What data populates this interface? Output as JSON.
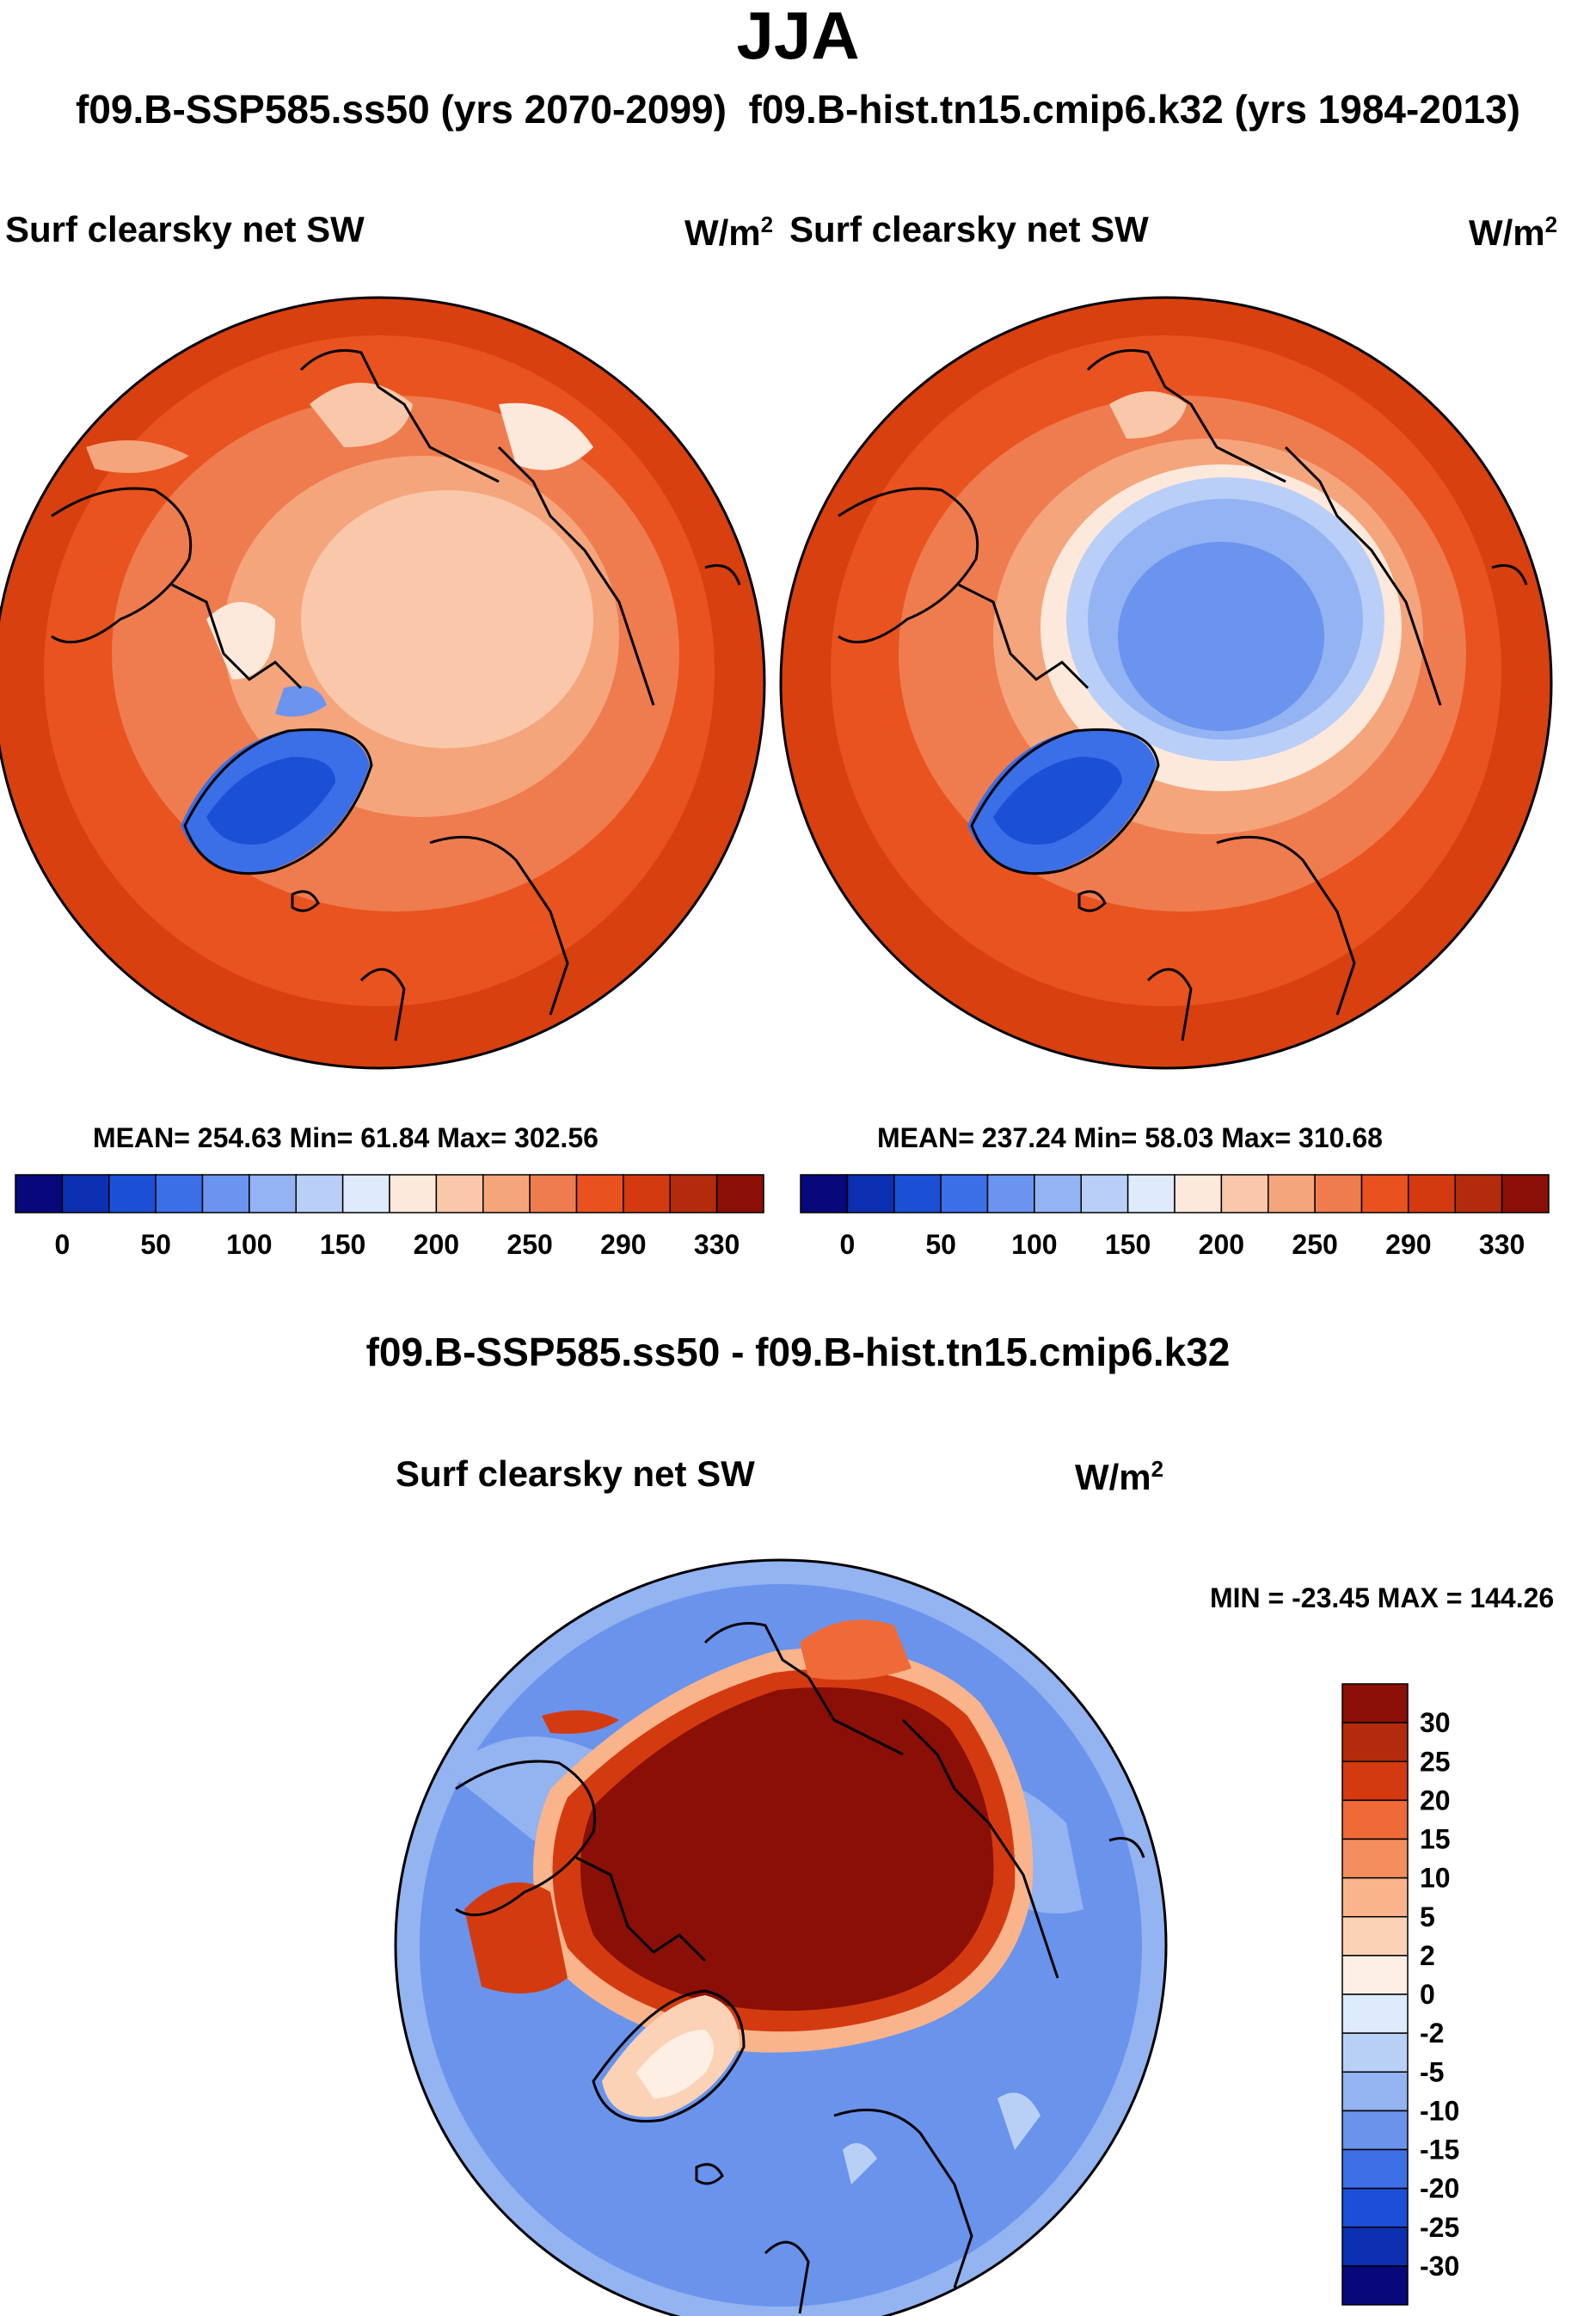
{
  "title": "JJA",
  "subtitle_left": "f09.B-SSP585.ss50 (yrs 2070-2099)",
  "subtitle_right": "f09.B-hist.tn15.cmip6.k32 (yrs 1984-2013)",
  "panel_left": {
    "variable": "Surf clearsky net SW",
    "units_base": "W/m",
    "units_exp": "2",
    "stats": "MEAN= 254.63  Min=  61.84  Max= 302.56"
  },
  "panel_right": {
    "variable": "Surf clearsky net SW",
    "units_base": "W/m",
    "units_exp": "2",
    "stats": "MEAN= 237.24  Min=  58.03  Max= 310.68"
  },
  "diff_panel": {
    "heading": "f09.B-SSP585.ss50 - f09.B-hist.tn15.cmip6.k32",
    "variable": "Surf clearsky net SW",
    "units_base": "W/m",
    "units_exp": "2",
    "minmax": "MIN = -23.45 MAX = 144.26"
  },
  "colors": {
    "abs_bins": [
      "#08087a",
      "#0b2fb0",
      "#1a4fd6",
      "#3a6fe8",
      "#6b94ee",
      "#93b3f2",
      "#b9cff7",
      "#dfeafc",
      "#fde9dc",
      "#f9c8aa",
      "#f5a57c",
      "#ef7c4e",
      "#e9511f",
      "#d43a10",
      "#b32a0c",
      "#8a0f06"
    ],
    "diff_bins": [
      "#8a0f06",
      "#b32a0c",
      "#d43a10",
      "#ef6a36",
      "#f58e5e",
      "#f9b48c",
      "#fbd2b6",
      "#fdefe4",
      "#ddebfc",
      "#b9d0f6",
      "#93b3f1",
      "#6a93ec",
      "#3e6fe6",
      "#1c4ed8",
      "#0b2fb0",
      "#08087a"
    ]
  },
  "chart_data": [
    {
      "type": "heatmap",
      "title": "Surf clearsky net SW",
      "period": "f09.B-SSP585.ss50 (yrs 2070-2099)",
      "colorbar_ticks": [
        "0",
        "50",
        "100",
        "150",
        "200",
        "250",
        "290",
        "330"
      ],
      "colorbar_levels": [
        0,
        25,
        50,
        75,
        100,
        125,
        150,
        175,
        200,
        225,
        250,
        270,
        290,
        310,
        330
      ],
      "mean": 254.63,
      "min": 61.84,
      "max": 302.56
    },
    {
      "type": "heatmap",
      "title": "Surf clearsky net SW",
      "period": "f09.B-hist.tn15.cmip6.k32 (yrs 1984-2013)",
      "colorbar_ticks": [
        "0",
        "50",
        "100",
        "150",
        "200",
        "250",
        "290",
        "330"
      ],
      "colorbar_levels": [
        0,
        25,
        50,
        75,
        100,
        125,
        150,
        175,
        200,
        225,
        250,
        270,
        290,
        310,
        330
      ],
      "mean": 237.24,
      "min": 58.03,
      "max": 310.68
    },
    {
      "type": "heatmap",
      "title": "Surf clearsky net SW",
      "difference": "f09.B-SSP585.ss50 - f09.B-hist.tn15.cmip6.k32",
      "colorbar_ticks": [
        "30",
        "25",
        "20",
        "15",
        "10",
        "5",
        "2",
        "0",
        "-2",
        "-5",
        "-10",
        "-15",
        "-20",
        "-25",
        "-30"
      ],
      "min": -23.45,
      "max": 144.26
    }
  ]
}
